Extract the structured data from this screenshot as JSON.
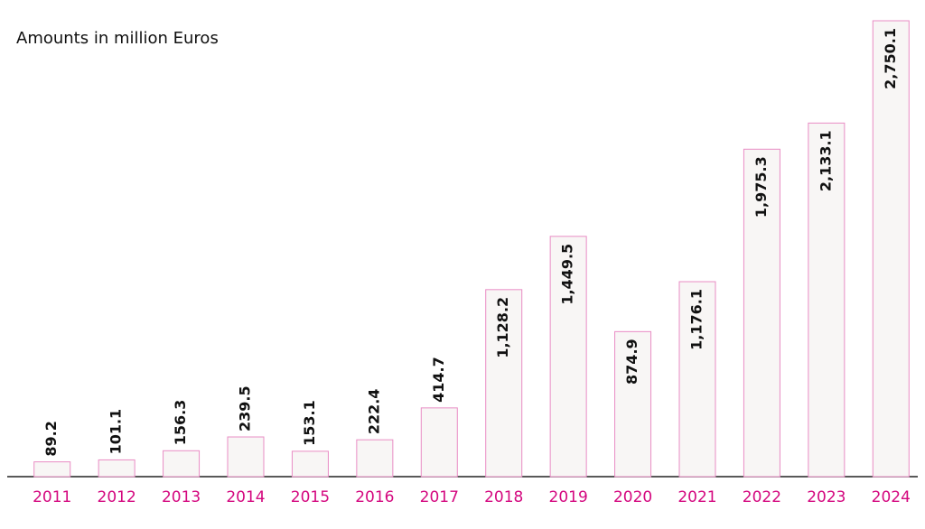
{
  "chart_data": {
    "type": "bar",
    "title": "Amounts in million Euros",
    "categories": [
      "2011",
      "2012",
      "2013",
      "2014",
      "2015",
      "2016",
      "2017",
      "2018",
      "2019",
      "2020",
      "2021",
      "2022",
      "2023",
      "2024"
    ],
    "values": [
      89.2,
      101.1,
      156.3,
      239.5,
      153.1,
      222.4,
      414.7,
      1128.2,
      1449.5,
      874.9,
      1176.1,
      1975.3,
      2133.1,
      2750.1
    ],
    "value_labels": [
      "89.2",
      "101.1",
      "156.3",
      "239.5",
      "153.1",
      "222.4",
      "414.7",
      "1,128.2",
      "1,449.5",
      "874.9",
      "1,176.1",
      "1,975.3",
      "2,133.1",
      "2,750.1"
    ],
    "color": "#f8f6f5",
    "edge_color": "#e98cc4"
  }
}
